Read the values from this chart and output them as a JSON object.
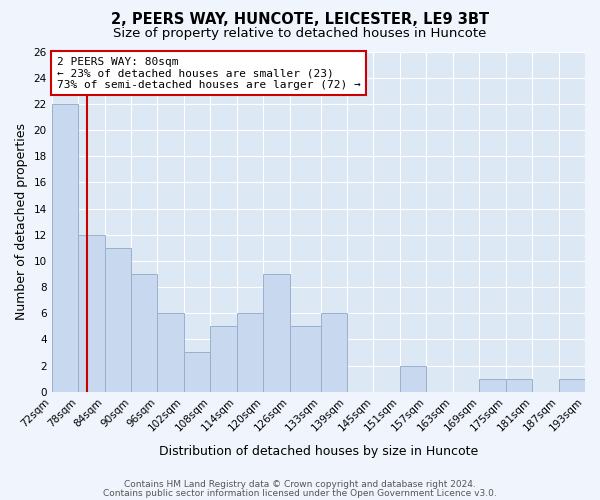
{
  "title1": "2, PEERS WAY, HUNCOTE, LEICESTER, LE9 3BT",
  "title2": "Size of property relative to detached houses in Huncote",
  "xlabel": "Distribution of detached houses by size in Huncote",
  "ylabel": "Number of detached properties",
  "bin_labels": [
    "72sqm",
    "78sqm",
    "84sqm",
    "90sqm",
    "96sqm",
    "102sqm",
    "108sqm",
    "114sqm",
    "120sqm",
    "126sqm",
    "133sqm",
    "139sqm",
    "145sqm",
    "151sqm",
    "157sqm",
    "163sqm",
    "169sqm",
    "175sqm",
    "181sqm",
    "187sqm",
    "193sqm"
  ],
  "bin_edges": [
    72,
    78,
    84,
    90,
    96,
    102,
    108,
    114,
    120,
    126,
    133,
    139,
    145,
    151,
    157,
    163,
    169,
    175,
    181,
    187,
    193
  ],
  "counts": [
    22,
    12,
    11,
    9,
    6,
    3,
    5,
    6,
    9,
    5,
    6,
    0,
    0,
    2,
    0,
    0,
    1,
    1,
    0,
    1
  ],
  "bar_color": "#c8d8ee",
  "bar_edge_color": "#99b0cc",
  "property_line_x": 80,
  "property_line_color": "#cc0000",
  "annotation_text": "2 PEERS WAY: 80sqm\n← 23% of detached houses are smaller (23)\n73% of semi-detached houses are larger (72) →",
  "annotation_box_edge_color": "#cc0000",
  "annotation_box_face_color": "white",
  "ylim": [
    0,
    26
  ],
  "yticks": [
    0,
    2,
    4,
    6,
    8,
    10,
    12,
    14,
    16,
    18,
    20,
    22,
    24,
    26
  ],
  "footer1": "Contains HM Land Registry data © Crown copyright and database right 2024.",
  "footer2": "Contains public sector information licensed under the Open Government Licence v3.0.",
  "bg_color": "#f0f4fc",
  "plot_bg_color": "#dde8f5",
  "grid_color": "white",
  "title_fontsize": 10.5,
  "subtitle_fontsize": 9.5,
  "axis_label_fontsize": 9,
  "tick_fontsize": 7.5,
  "footer_fontsize": 6.5
}
